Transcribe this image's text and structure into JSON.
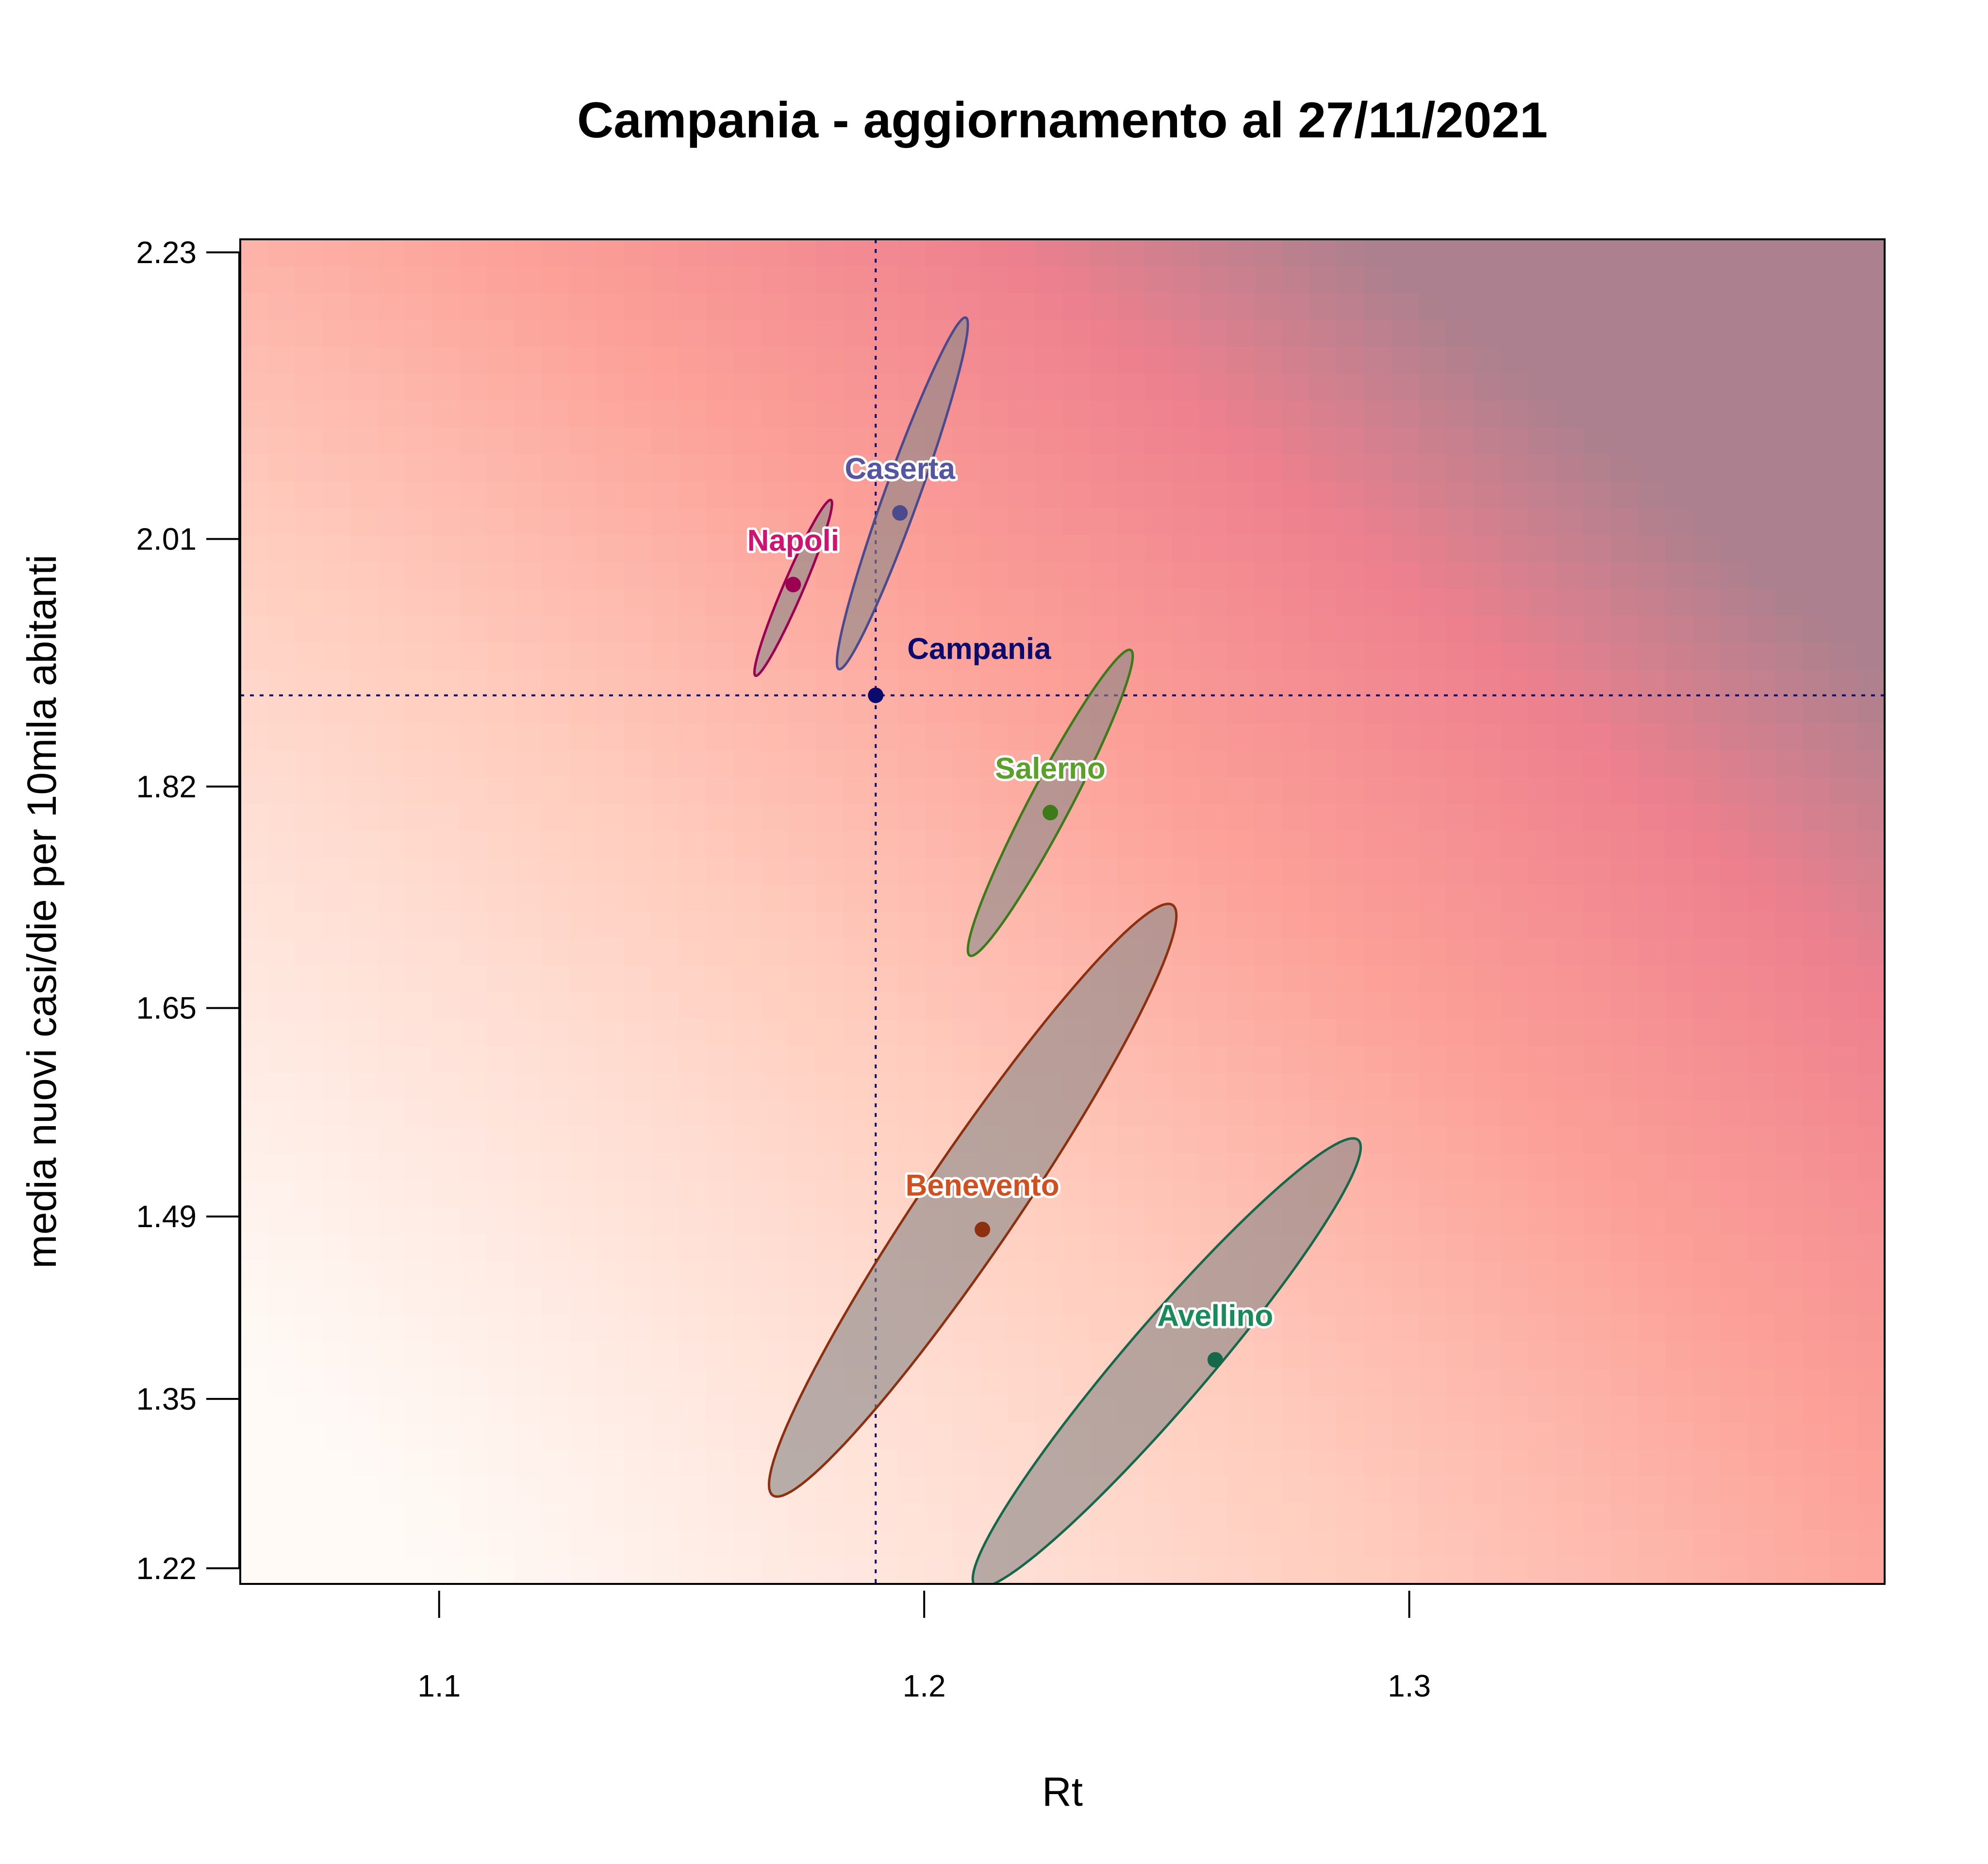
{
  "chart_data": {
    "type": "scatter",
    "title": "Campania - aggiornamento al 27/11/2021",
    "xlabel": "Rt",
    "ylabel": "media nuovi casi/die per 10mila abitanti",
    "xlim": [
      1.059,
      1.398
    ],
    "ylim": [
      1.208,
      2.24
    ],
    "x_ticks": [
      1.1,
      1.2,
      1.3
    ],
    "x_tick_labels": [
      "1.1",
      "1.2",
      "1.3"
    ],
    "y_ticks": [
      1.22,
      1.35,
      1.49,
      1.65,
      1.82,
      2.01,
      2.23
    ],
    "y_tick_labels": [
      "1.22",
      "1.35",
      "1.49",
      "1.65",
      "1.82",
      "2.01",
      "2.23"
    ],
    "grid": false,
    "legend": "none",
    "background": "heatmap, risk increasing with Rt and cases (light to deep pink)",
    "reference": {
      "name": "Campania",
      "x": 1.19,
      "y": 1.89,
      "color": "#0b0b6e",
      "lines": "dotted vertical and horizontal"
    },
    "series": [
      {
        "name": "Caserta",
        "x": 1.195,
        "y": 2.03,
        "color": "#4a4a8c",
        "label_color": "#5555a0",
        "ellipse": {
          "x": [
            1.182,
            1.209
          ],
          "y": [
            1.91,
            2.18
          ]
        }
      },
      {
        "name": "Napoli",
        "x": 1.173,
        "y": 1.975,
        "color": "#9c0050",
        "label_color": "#cc1470",
        "ellipse": {
          "x": [
            1.165,
            1.181
          ],
          "y": [
            1.905,
            2.04
          ]
        }
      },
      {
        "name": "Salerno",
        "x": 1.226,
        "y": 1.8,
        "color": "#3c7a1a",
        "label_color": "#5aa02a",
        "ellipse": {
          "x": [
            1.209,
            1.243
          ],
          "y": [
            1.69,
            1.925
          ]
        }
      },
      {
        "name": "Benevento",
        "x": 1.212,
        "y": 1.48,
        "color": "#8c3010",
        "label_color": "#d05020",
        "ellipse": {
          "x": [
            1.168,
            1.252
          ],
          "y": [
            1.275,
            1.73
          ]
        }
      },
      {
        "name": "Avellino",
        "x": 1.26,
        "y": 1.38,
        "color": "#15694a",
        "label_color": "#1a8a5a",
        "ellipse": {
          "x": [
            1.21,
            1.29
          ],
          "y": [
            1.205,
            1.55
          ]
        }
      }
    ]
  }
}
